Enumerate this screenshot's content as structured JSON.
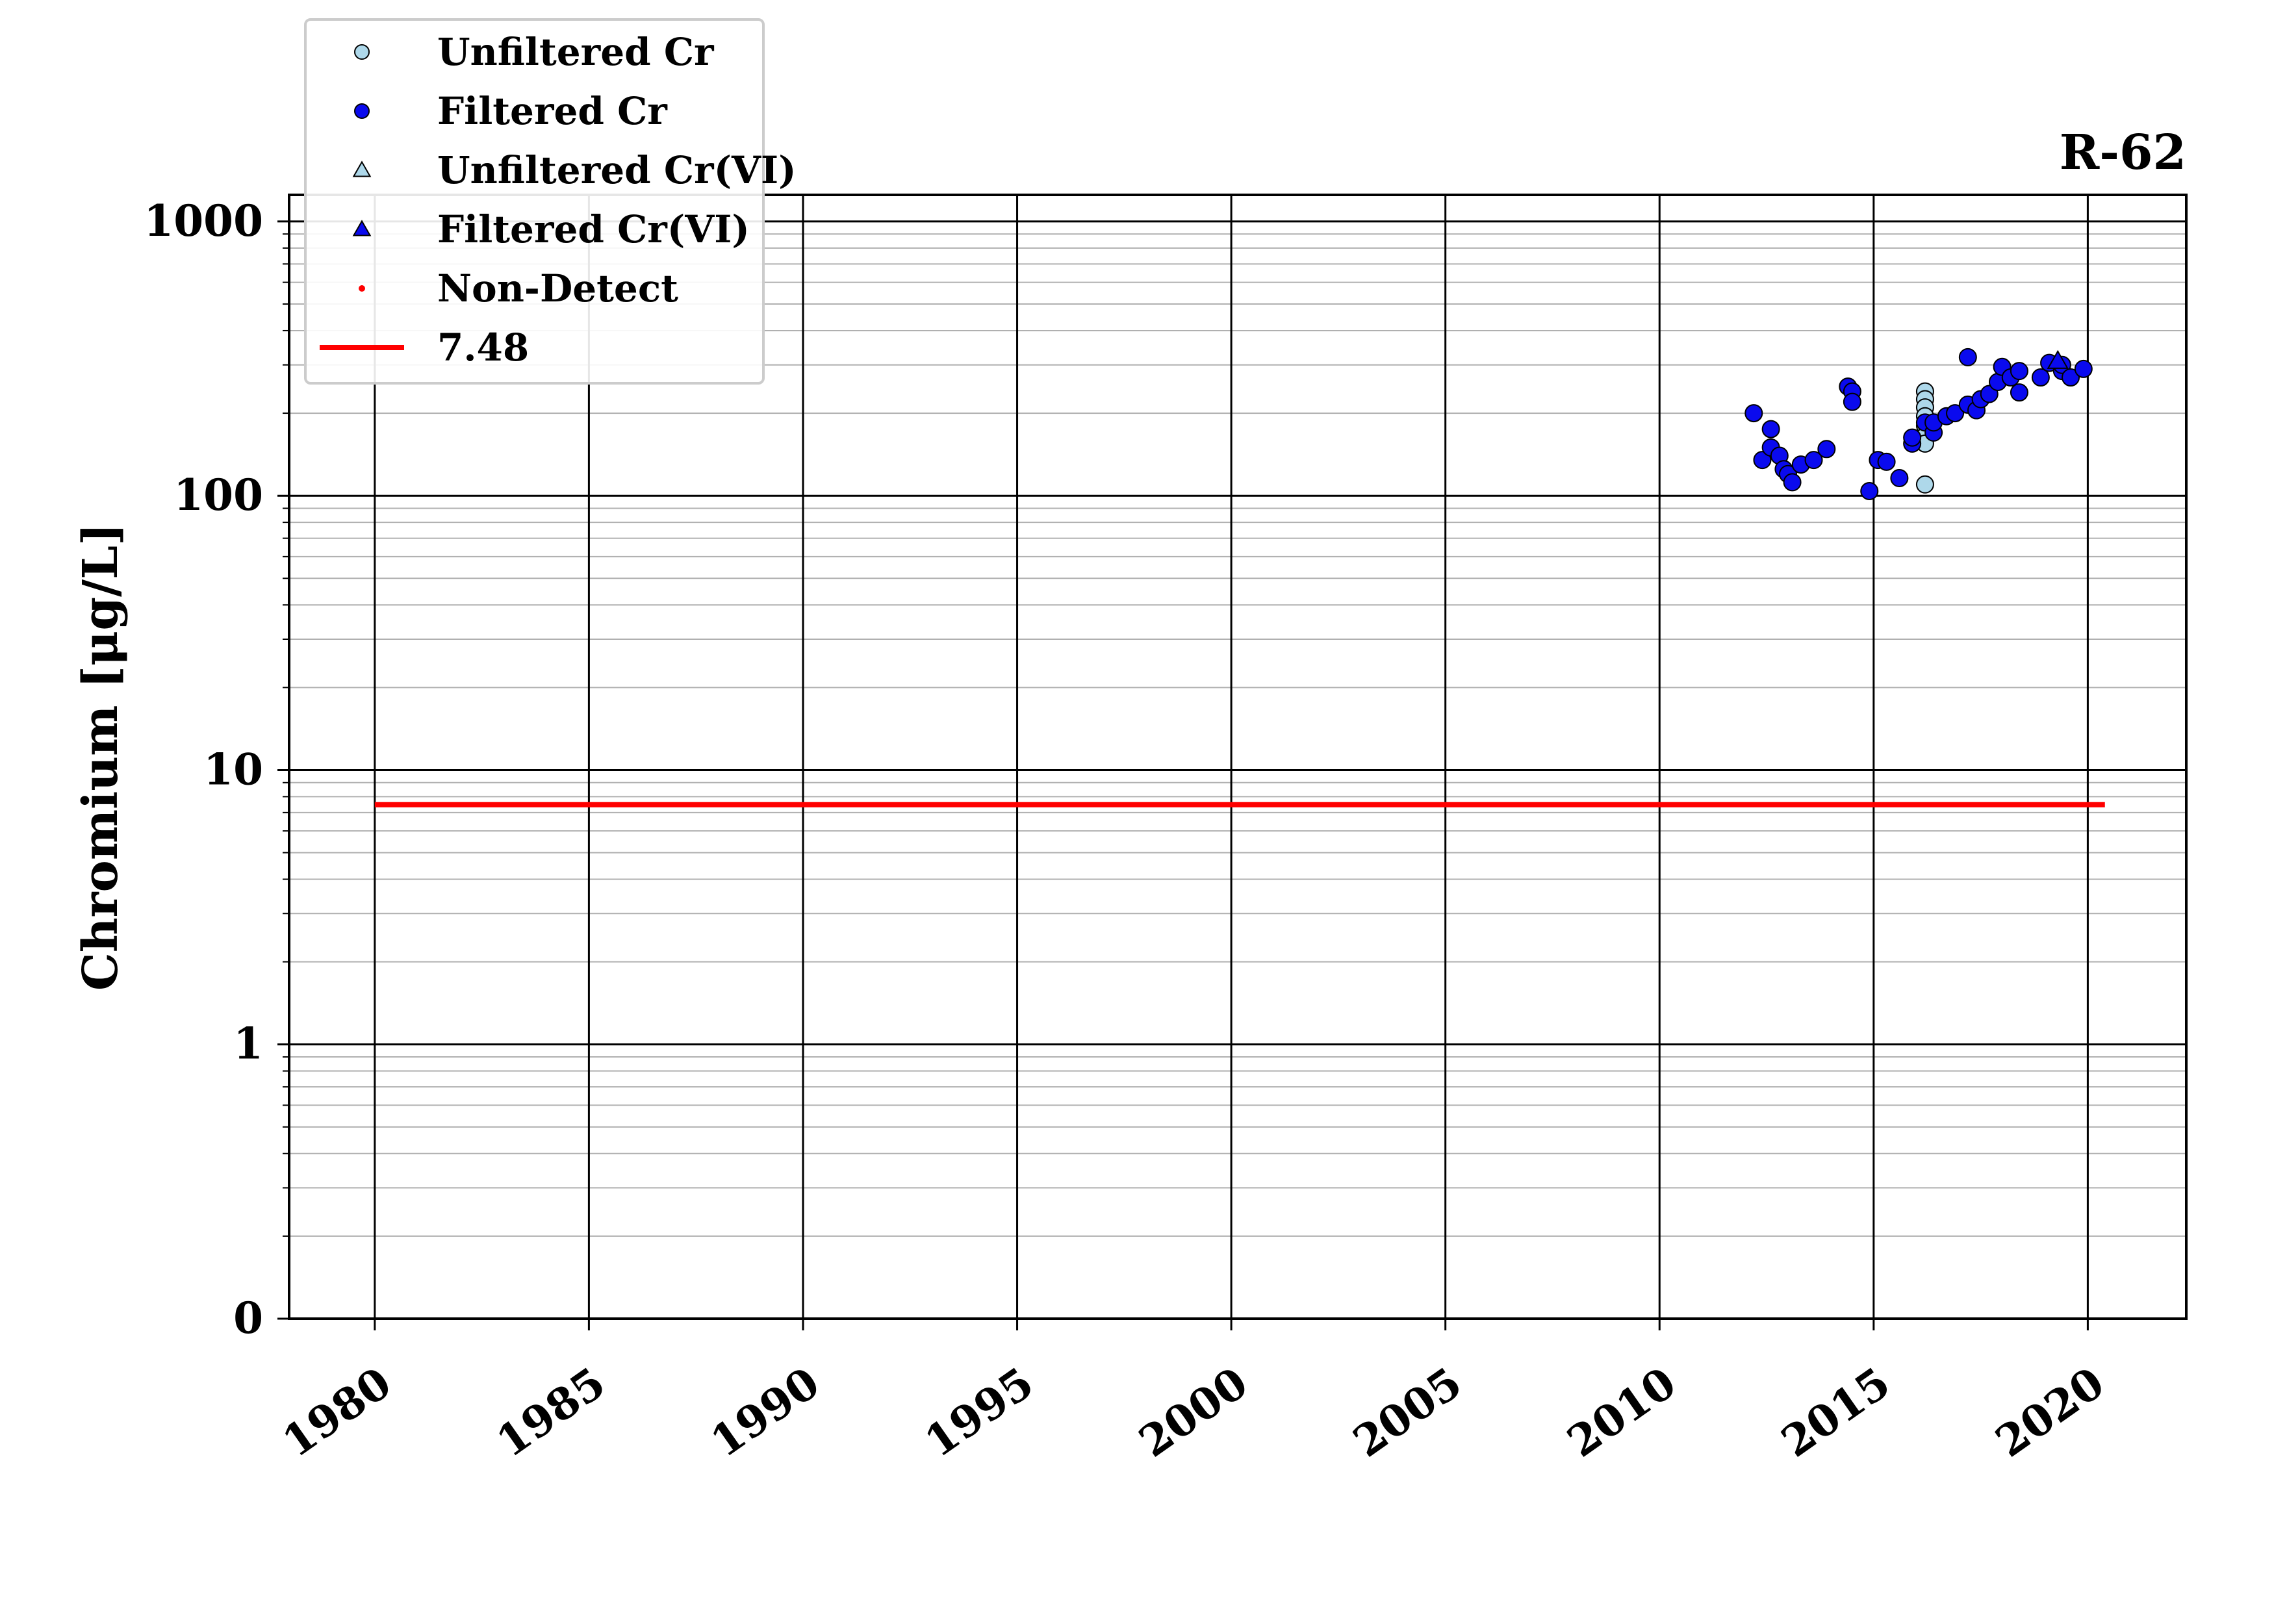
{
  "chart_data": {
    "type": "scatter",
    "title": "R-62",
    "xlabel": "",
    "ylabel": "Chromium [μg/L]",
    "yscale": "log",
    "xlim": [
      1978,
      2022.3
    ],
    "ylim": [
      0.1,
      1250
    ],
    "grid": true,
    "legend_position": "top-left",
    "x_ticks": [
      1980,
      1985,
      1990,
      1995,
      2000,
      2005,
      2010,
      2015,
      2020
    ],
    "x_tick_labels": [
      "1980",
      "1985",
      "1990",
      "1995",
      "2000",
      "2005",
      "2010",
      "2015",
      "2020"
    ],
    "y_ticks": [
      0.1,
      1,
      10,
      100,
      1000
    ],
    "y_tick_labels": [
      "0",
      "1",
      "10",
      "100",
      "1000"
    ],
    "colors": {
      "filtered": "#0a0aee",
      "unfiltered": "#aed8ea",
      "nondetect": "#ff0000",
      "reference_line": "#ff0000"
    },
    "legend": [
      {
        "label": "Unfiltered Cr",
        "marker": "circle",
        "color": "#aed8ea"
      },
      {
        "label": "Filtered Cr",
        "marker": "circle",
        "color": "#0a0aee"
      },
      {
        "label": "Unfiltered Cr(VI)",
        "marker": "triangle",
        "color": "#aed8ea"
      },
      {
        "label": "Filtered Cr(VI)",
        "marker": "triangle",
        "color": "#0a0aee"
      },
      {
        "label": "Non-Detect",
        "marker": "dot",
        "color": "#ff0000"
      },
      {
        "label": "7.48",
        "marker": "line",
        "color": "#ff0000"
      }
    ],
    "reference_line": {
      "label": "7.48",
      "value": 7.48,
      "x_range": [
        1980,
        2020.4
      ]
    },
    "series": [
      {
        "name": "Unfiltered Cr",
        "marker": "circle",
        "points": [
          [
            2016.2,
            240
          ],
          [
            2016.2,
            225
          ],
          [
            2016.2,
            210
          ],
          [
            2016.2,
            195
          ],
          [
            2016.2,
            180
          ],
          [
            2016.2,
            165
          ],
          [
            2016.2,
            155
          ],
          [
            2016.2,
            110
          ]
        ]
      },
      {
        "name": "Filtered Cr",
        "marker": "circle",
        "points": [
          [
            2012.2,
            200
          ],
          [
            2012.4,
            135
          ],
          [
            2012.6,
            175
          ],
          [
            2012.6,
            150
          ],
          [
            2012.8,
            140
          ],
          [
            2012.9,
            125
          ],
          [
            2013.0,
            120
          ],
          [
            2013.1,
            112
          ],
          [
            2013.3,
            130
          ],
          [
            2013.6,
            135
          ],
          [
            2013.9,
            148
          ],
          [
            2014.4,
            250
          ],
          [
            2014.5,
            240
          ],
          [
            2014.5,
            220
          ],
          [
            2014.9,
            104
          ],
          [
            2015.1,
            135
          ],
          [
            2015.3,
            133
          ],
          [
            2015.6,
            116
          ],
          [
            2015.9,
            155
          ],
          [
            2015.9,
            163
          ],
          [
            2016.2,
            185
          ],
          [
            2016.4,
            170
          ],
          [
            2016.4,
            185
          ],
          [
            2016.7,
            195
          ],
          [
            2016.9,
            200
          ],
          [
            2017.2,
            215
          ],
          [
            2017.2,
            320
          ],
          [
            2017.4,
            205
          ],
          [
            2017.5,
            225
          ],
          [
            2017.7,
            235
          ],
          [
            2017.9,
            260
          ],
          [
            2018.0,
            295
          ],
          [
            2018.2,
            270
          ],
          [
            2018.4,
            238
          ],
          [
            2018.4,
            285
          ],
          [
            2018.9,
            270
          ],
          [
            2019.1,
            305
          ],
          [
            2019.4,
            285
          ],
          [
            2019.4,
            300
          ],
          [
            2019.6,
            270
          ],
          [
            2019.9,
            290
          ]
        ]
      },
      {
        "name": "Filtered Cr(VI)",
        "marker": "triangle",
        "points": [
          [
            2019.3,
            310
          ]
        ]
      }
    ]
  }
}
